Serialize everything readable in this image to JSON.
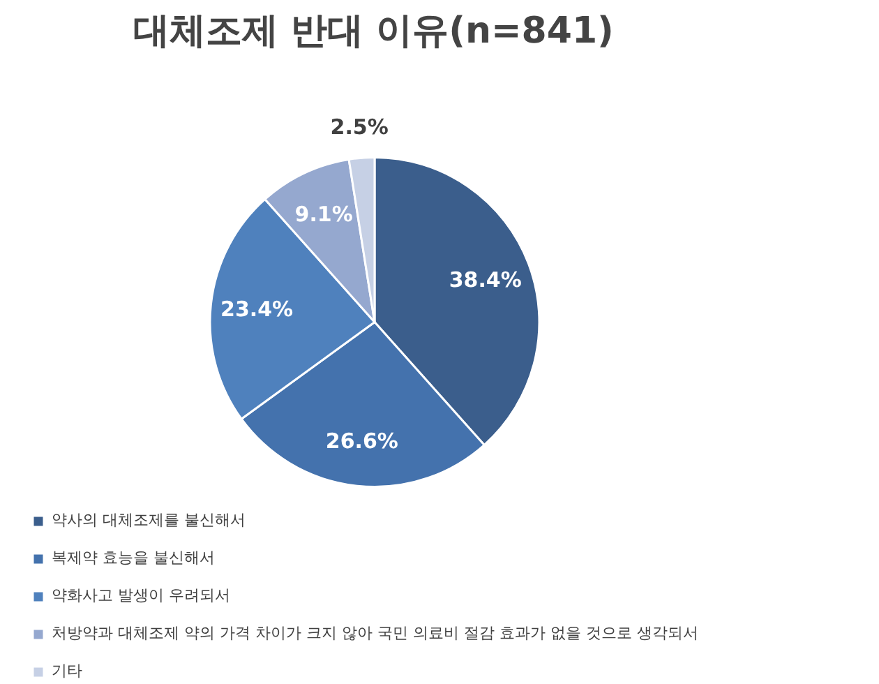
{
  "chart_data": {
    "type": "pie",
    "title": "대체조제 반대 이유(n=841)",
    "categories": [
      "약사의 대체조제를 불신해서",
      "복제약 효능을 불신해서",
      "약화사고 발생이 우려되서",
      "처방약과 대체조제 약의 가격 차이가 크지 않아 국민 의료비 절감 효과가 없을 것으로 생각되서",
      "기타"
    ],
    "values": [
      38.4,
      26.6,
      23.4,
      9.1,
      2.5
    ],
    "value_labels": [
      "38.4%",
      "26.6%",
      "23.4%",
      "9.1%",
      "2.5%"
    ],
    "colors": [
      "#3b5e8c",
      "#4472ad",
      "#4f81bd",
      "#95a8cf",
      "#c6d0e5"
    ],
    "legend": "bottom"
  }
}
